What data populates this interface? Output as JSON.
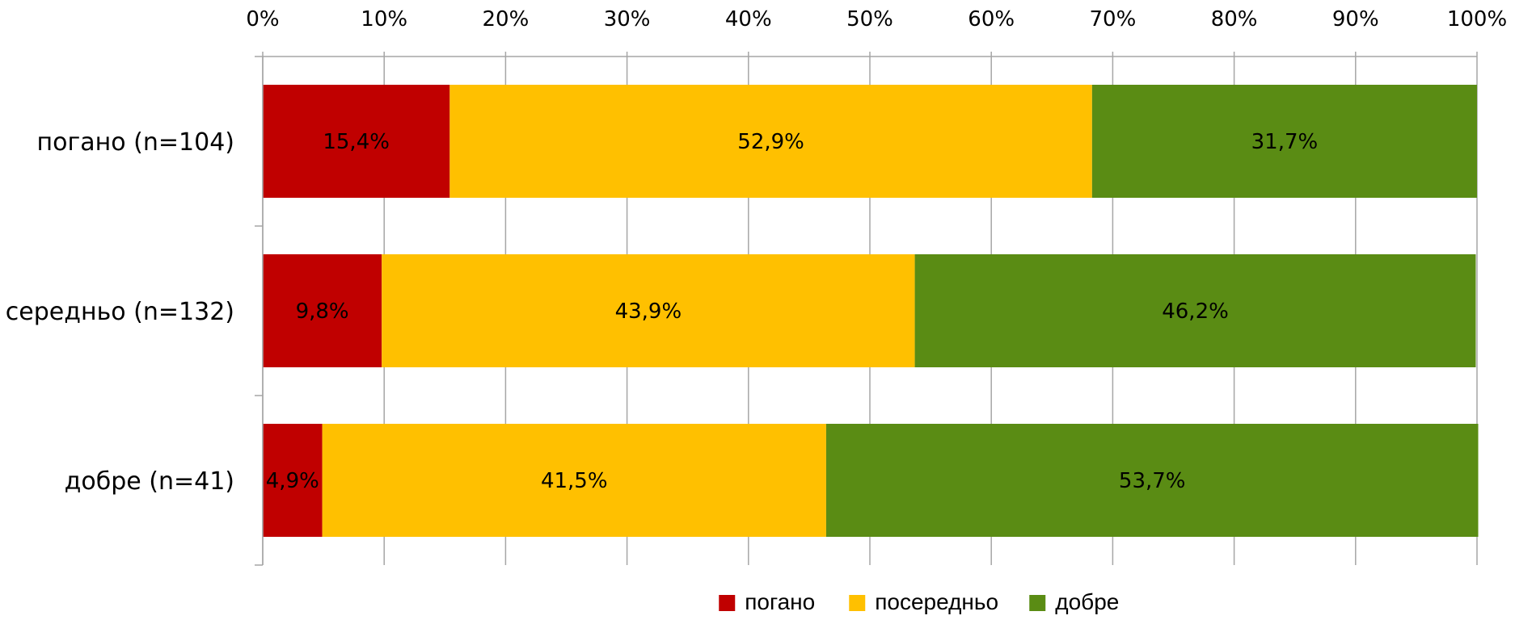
{
  "chart_data": {
    "type": "bar",
    "orientation": "horizontal",
    "stacked": true,
    "percent_stacked": true,
    "categories": [
      "погано  (n=104)",
      "середньо (n=132)",
      "добре (n=41)"
    ],
    "series": [
      {
        "name": "погано",
        "color": "#c00000",
        "values": [
          15.4,
          9.8,
          4.9
        ],
        "labels": [
          "15,4%",
          "9,8%",
          "4,9%"
        ]
      },
      {
        "name": "посередньо",
        "color": "#ffc000",
        "values": [
          52.9,
          43.9,
          41.5
        ],
        "labels": [
          "52,9%",
          "43,9%",
          "41,5%"
        ]
      },
      {
        "name": "добре",
        "color": "#5a8c14",
        "values": [
          31.7,
          46.2,
          53.7
        ],
        "labels": [
          "31,7%",
          "46,2%",
          "53,7%"
        ]
      }
    ],
    "xlim": [
      0,
      100
    ],
    "x_ticks": [
      "0%",
      "10%",
      "20%",
      "30%",
      "40%",
      "50%",
      "60%",
      "70%",
      "80%",
      "90%",
      "100%"
    ],
    "x_axis_position": "top",
    "grid": true,
    "legend_position": "bottom"
  }
}
